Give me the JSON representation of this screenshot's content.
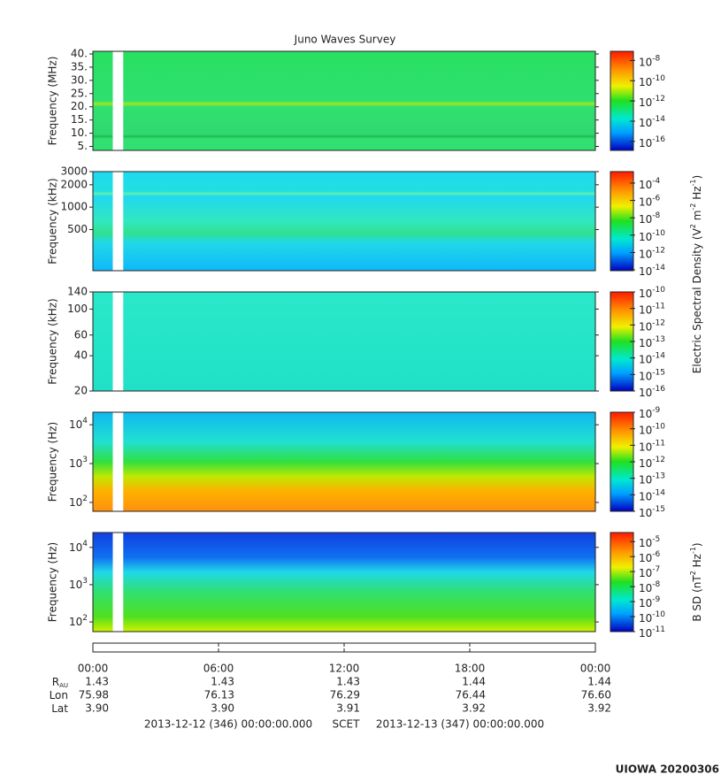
{
  "title": "Juno Waves Survey",
  "chart_data": [
    {
      "type": "heatmap",
      "y_label": "Frequency (MHz)",
      "ylog": false,
      "ylim": [
        3.5,
        41
      ],
      "yticks": [
        {
          "value": 5,
          "label": "5."
        },
        {
          "value": 10,
          "label": "10."
        },
        {
          "value": 15,
          "label": "15."
        },
        {
          "value": 20,
          "label": "20."
        },
        {
          "value": 25,
          "label": "25."
        },
        {
          "value": 30,
          "label": "30."
        },
        {
          "value": 35,
          "label": "35."
        },
        {
          "value": 40,
          "label": "40."
        }
      ],
      "xlim": [
        0,
        24
      ],
      "gap": [
        0.95,
        1.45
      ],
      "clim": [
        1.3e-17,
        8e-08
      ],
      "cticks": [
        {
          "value": 1e-08,
          "base": "10",
          "exponent": "-8"
        },
        {
          "value": 1e-10,
          "base": "10",
          "exponent": "-10"
        },
        {
          "value": 1e-12,
          "base": "10",
          "exponent": "-12"
        },
        {
          "value": 1e-14,
          "base": "10",
          "exponent": "-14"
        },
        {
          "value": 1e-16,
          "base": "10",
          "exponent": "-16"
        }
      ]
    },
    {
      "type": "heatmap",
      "y_label": "Frequency (kHz)",
      "ylog": true,
      "ylim": [
        140,
        3000
      ],
      "yticks": [
        500,
        1000,
        2000,
        3000
      ],
      "xlim": [
        0,
        24
      ],
      "gap": [
        0.95,
        1.45
      ],
      "clim": [
        8e-15,
        0.0021
      ],
      "cticks": [
        {
          "value": 0.0001,
          "base": "10",
          "exponent": "-4"
        },
        {
          "value": 1e-06,
          "base": "10",
          "exponent": "-6"
        },
        {
          "value": 1e-08,
          "base": "10",
          "exponent": "-8"
        },
        {
          "value": 1e-10,
          "base": "10",
          "exponent": "-10"
        },
        {
          "value": 1e-12,
          "base": "10",
          "exponent": "-12"
        },
        {
          "value": 1e-14,
          "base": "10",
          "exponent": "-14"
        }
      ]
    },
    {
      "type": "heatmap",
      "y_label": "Frequency (kHz)",
      "ylog": true,
      "ylim": [
        20,
        140
      ],
      "yticks": [
        20,
        40,
        60,
        100,
        140
      ],
      "xlim": [
        0,
        24
      ],
      "gap": [
        0.95,
        1.45
      ],
      "clim": [
        1e-16,
        1e-10
      ],
      "cticks": [
        {
          "value": 1e-10,
          "base": "10",
          "exponent": "-10"
        },
        {
          "value": 1e-11,
          "base": "10",
          "exponent": "-11"
        },
        {
          "value": 1e-12,
          "base": "10",
          "exponent": "-12"
        },
        {
          "value": 1e-13,
          "base": "10",
          "exponent": "-13"
        },
        {
          "value": 1e-14,
          "base": "10",
          "exponent": "-14"
        },
        {
          "value": 1e-15,
          "base": "10",
          "exponent": "-15"
        },
        {
          "value": 1e-16,
          "base": "10",
          "exponent": "-16"
        }
      ]
    },
    {
      "type": "heatmap",
      "y_label": "Frequency (Hz)",
      "ylog": true,
      "ylim": [
        59,
        21000
      ],
      "yticks": [
        {
          "value": 100,
          "base": "10",
          "exponent": "2"
        },
        {
          "value": 1000,
          "base": "10",
          "exponent": "3"
        },
        {
          "value": 10000,
          "base": "10",
          "exponent": "4"
        }
      ],
      "xlim": [
        0,
        24
      ],
      "gap": [
        0.95,
        1.45
      ],
      "clim": [
        1e-15,
        1e-09
      ],
      "cticks": [
        {
          "value": 1e-09,
          "base": "10",
          "exponent": "-9"
        },
        {
          "value": 1e-10,
          "base": "10",
          "exponent": "-10"
        },
        {
          "value": 1e-11,
          "base": "10",
          "exponent": "-11"
        },
        {
          "value": 1e-12,
          "base": "10",
          "exponent": "-12"
        },
        {
          "value": 1e-13,
          "base": "10",
          "exponent": "-13"
        },
        {
          "value": 1e-14,
          "base": "10",
          "exponent": "-14"
        },
        {
          "value": 1e-15,
          "base": "10",
          "exponent": "-15"
        }
      ]
    },
    {
      "type": "heatmap",
      "y_label": "Frequency (Hz)",
      "ylog": true,
      "ylim": [
        55,
        25000
      ],
      "yticks": [
        {
          "value": 100,
          "base": "10",
          "exponent": "2"
        },
        {
          "value": 1000,
          "base": "10",
          "exponent": "3"
        },
        {
          "value": 10000,
          "base": "10",
          "exponent": "4"
        }
      ],
      "xlim": [
        0,
        24
      ],
      "gap": [
        0.95,
        1.45
      ],
      "clim": [
        1e-11,
        4e-05
      ],
      "cticks": [
        {
          "value": 1e-05,
          "base": "10",
          "exponent": "-5"
        },
        {
          "value": 1e-06,
          "base": "10",
          "exponent": "-6"
        },
        {
          "value": 1e-07,
          "base": "10",
          "exponent": "-7"
        },
        {
          "value": 1e-08,
          "base": "10",
          "exponent": "-8"
        },
        {
          "value": 1e-09,
          "base": "10",
          "exponent": "-9"
        },
        {
          "value": 1e-10,
          "base": "10",
          "exponent": "-10"
        },
        {
          "value": 1e-11,
          "base": "10",
          "exponent": "-11"
        }
      ]
    }
  ],
  "colorbar_labels": [
    [
      "Electric Spectral Density (V",
      "2",
      " m",
      "-2",
      " Hz",
      "-1",
      ")"
    ],
    [
      "B SD (nT",
      "2",
      " Hz",
      "-1",
      ")"
    ]
  ],
  "time_axis": {
    "xlim": [
      0,
      24
    ],
    "xticks": [
      {
        "value": 0,
        "label": "00:00"
      },
      {
        "value": 6,
        "label": "06:00"
      },
      {
        "value": 12,
        "label": "12:00"
      },
      {
        "value": 18,
        "label": "18:00"
      },
      {
        "value": 24,
        "label": "00:00"
      }
    ]
  },
  "ephemeris": [
    {
      "label": "R",
      "subscript": "AU",
      "values": [
        "1.43",
        "1.43",
        "1.43",
        "1.44",
        "1.44"
      ]
    },
    {
      "label": "Lon",
      "values": [
        "75.98",
        "76.13",
        "76.29",
        "76.44",
        "76.60"
      ]
    },
    {
      "label": "Lat",
      "values": [
        "3.90",
        "3.90",
        "3.91",
        "3.92",
        "3.92"
      ]
    }
  ],
  "footer": {
    "start": "2013-12-12 (346) 00:00:00.000",
    "frame": "SCET",
    "end": "2013-12-13 (347) 00:00:00.000"
  },
  "stamp": "UIOWA 20200306"
}
